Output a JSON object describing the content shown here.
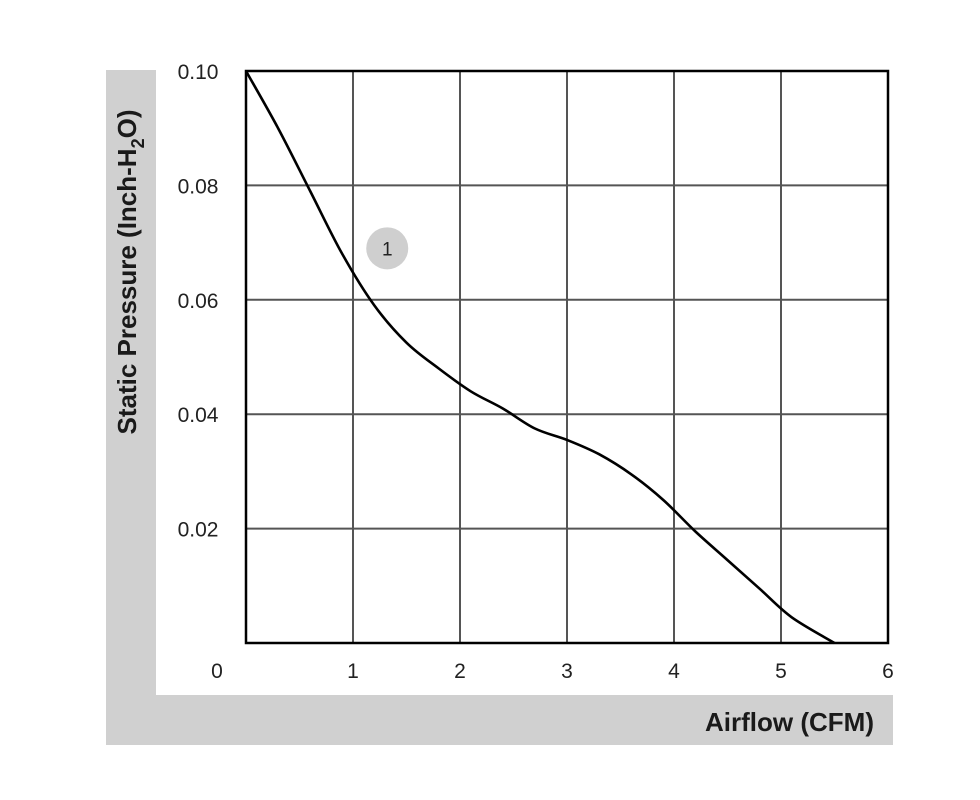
{
  "chart_data": {
    "type": "line",
    "xlabel": "Airflow (CFM)",
    "ylabel": {
      "prefix": "Static Pressure (Inch-H",
      "subscript": "2",
      "suffix": "O)"
    },
    "xlim": [
      0,
      6
    ],
    "ylim": [
      0,
      0.1
    ],
    "x_ticks": [
      {
        "value": 0,
        "label": "0"
      },
      {
        "value": 1,
        "label": "1"
      },
      {
        "value": 2,
        "label": "2"
      },
      {
        "value": 3,
        "label": "3"
      },
      {
        "value": 4,
        "label": "4"
      },
      {
        "value": 5,
        "label": "5"
      },
      {
        "value": 6,
        "label": "6"
      }
    ],
    "y_ticks": [
      {
        "value": 0.02,
        "label": "0.02"
      },
      {
        "value": 0.04,
        "label": "0.04"
      },
      {
        "value": 0.06,
        "label": "0.06"
      },
      {
        "value": 0.08,
        "label": "0.08"
      },
      {
        "value": 0.1,
        "label": "0.10"
      }
    ],
    "grid": true,
    "series": [
      {
        "label": "1",
        "color": "#000000",
        "label_at": {
          "x": 1.32,
          "y": 0.069
        },
        "points": [
          {
            "x": 0,
            "y": 0.1
          },
          {
            "x": 0.3,
            "y": 0.09
          },
          {
            "x": 0.6,
            "y": 0.079
          },
          {
            "x": 0.9,
            "y": 0.068
          },
          {
            "x": 1.2,
            "y": 0.059
          },
          {
            "x": 1.5,
            "y": 0.0525
          },
          {
            "x": 1.8,
            "y": 0.048
          },
          {
            "x": 2.1,
            "y": 0.044
          },
          {
            "x": 2.4,
            "y": 0.041
          },
          {
            "x": 2.7,
            "y": 0.0375
          },
          {
            "x": 3.0,
            "y": 0.0355
          },
          {
            "x": 3.3,
            "y": 0.033
          },
          {
            "x": 3.6,
            "y": 0.0295
          },
          {
            "x": 3.9,
            "y": 0.025
          },
          {
            "x": 4.2,
            "y": 0.0195
          },
          {
            "x": 4.5,
            "y": 0.0145
          },
          {
            "x": 4.8,
            "y": 0.0095
          },
          {
            "x": 5.1,
            "y": 0.0045
          },
          {
            "x": 5.5,
            "y": 0.0
          }
        ]
      }
    ]
  },
  "colors": {
    "frame_band": "#d0d0d0",
    "grid": "#555555",
    "border": "#000000",
    "marker_fill": "#cfcfcf"
  }
}
